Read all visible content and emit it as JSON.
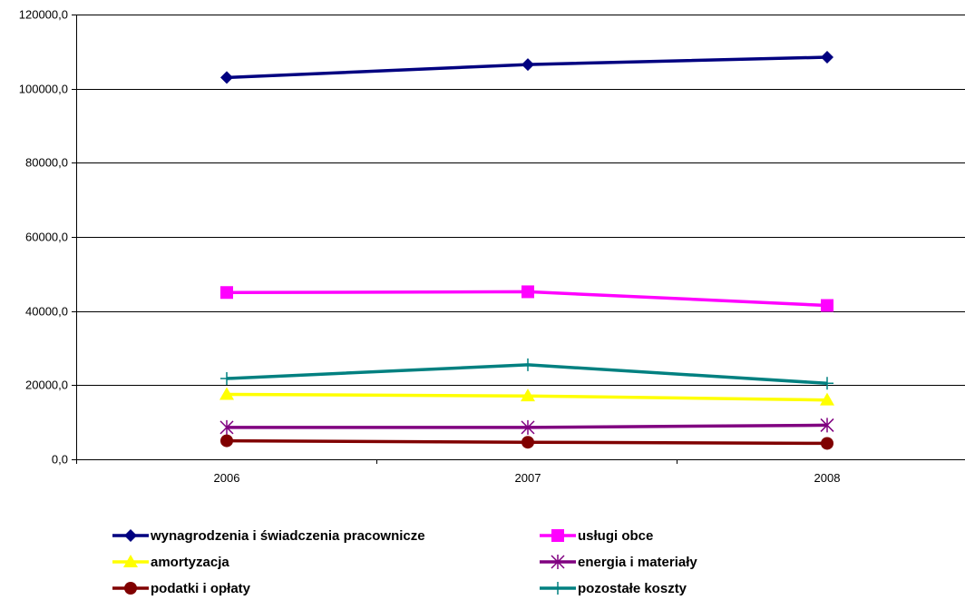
{
  "chart_data": {
    "type": "line",
    "categories": [
      "2006",
      "2007",
      "2008"
    ],
    "ylim": [
      0,
      120000
    ],
    "yticks": [
      0,
      20000,
      40000,
      60000,
      80000,
      100000,
      120000
    ],
    "ytick_labels": [
      "0,0",
      "20000,0",
      "40000,0",
      "60000,0",
      "80000,0",
      "100000,0",
      "120000,0"
    ],
    "grid": "horizontal",
    "legend_position": "bottom",
    "series": [
      {
        "name": "wynagrodzenia i świadczenia pracownicze",
        "color": "#000080",
        "marker": "diamond",
        "values": [
          103000,
          106500,
          108500
        ]
      },
      {
        "name": "usługi obce",
        "color": "#ff00ff",
        "marker": "square",
        "values": [
          45000,
          45200,
          41500
        ]
      },
      {
        "name": "amortyzacja",
        "color": "#ffff00",
        "marker": "triangle",
        "values": [
          17500,
          17100,
          16000
        ]
      },
      {
        "name": "energia i materiały",
        "color": "#800080",
        "marker": "asterisk",
        "values": [
          8600,
          8600,
          9200
        ]
      },
      {
        "name": "podatki i opłaty",
        "color": "#800000",
        "marker": "circle",
        "values": [
          5000,
          4600,
          4300
        ]
      },
      {
        "name": "pozostałe koszty",
        "color": "#008080",
        "marker": "plus",
        "values": [
          21800,
          25500,
          20500
        ]
      }
    ]
  }
}
